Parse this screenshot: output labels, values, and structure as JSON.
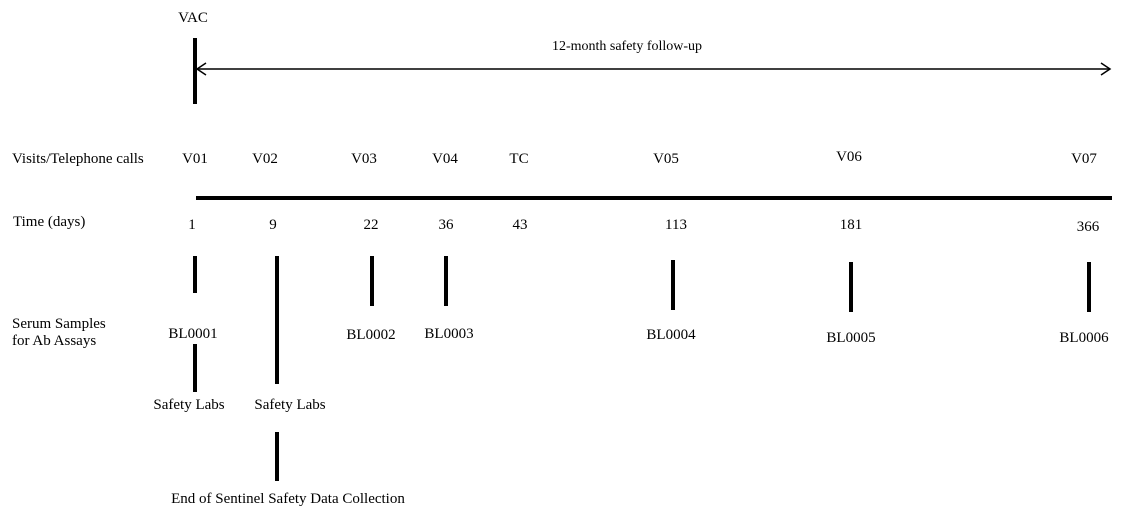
{
  "vaccination": {
    "label": "VAC"
  },
  "follow_up": {
    "label": "12-month safety follow-up"
  },
  "row_labels": {
    "visits": "Visits/Telephone calls",
    "time": "Time (days)",
    "serum_line1": "Serum Samples",
    "serum_line2": "for Ab Assays"
  },
  "visits": [
    {
      "name": "V01",
      "day": "1",
      "sample": "BL0001"
    },
    {
      "name": "V02",
      "day": "9",
      "sample": ""
    },
    {
      "name": "V03",
      "day": "22",
      "sample": "BL0002"
    },
    {
      "name": "V04",
      "day": "36",
      "sample": "BL0003"
    },
    {
      "name": "TC",
      "day": "43",
      "sample": ""
    },
    {
      "name": "V05",
      "day": "113",
      "sample": "BL0004"
    },
    {
      "name": "V06",
      "day": "181",
      "sample": "BL0005"
    },
    {
      "name": "V07",
      "day": "366",
      "sample": "BL0006"
    }
  ],
  "safety_labs": [
    {
      "visit": "V01",
      "label": "Safety Labs"
    },
    {
      "visit": "V02",
      "label": "Safety Labs"
    }
  ],
  "sentinel": {
    "label": "End of Sentinel Safety Data Collection"
  }
}
